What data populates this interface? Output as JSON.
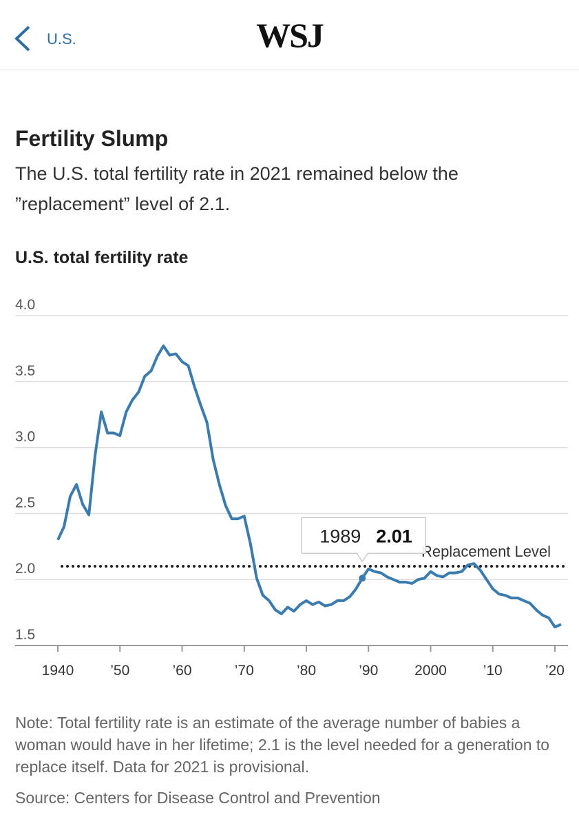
{
  "header": {
    "back_label": "U.S.",
    "logo": "WSJ"
  },
  "chart_data": {
    "type": "line",
    "title": "Fertility Slump",
    "subtitle": "The U.S. total fertility rate in 2021 remained below the ”replacement” level of 2.1.",
    "y_label": "U.S. total fertility rate",
    "color": "#3a7bb0",
    "x": [
      1940,
      1941,
      1942,
      1943,
      1944,
      1945,
      1946,
      1947,
      1948,
      1949,
      1950,
      1951,
      1952,
      1953,
      1954,
      1955,
      1956,
      1957,
      1958,
      1959,
      1960,
      1961,
      1962,
      1963,
      1964,
      1965,
      1966,
      1967,
      1968,
      1969,
      1970,
      1971,
      1972,
      1973,
      1974,
      1975,
      1976,
      1977,
      1978,
      1979,
      1980,
      1981,
      1982,
      1983,
      1984,
      1985,
      1986,
      1987,
      1988,
      1989,
      1990,
      1991,
      1992,
      1993,
      1994,
      1995,
      1996,
      1997,
      1998,
      1999,
      2000,
      2001,
      2002,
      2003,
      2004,
      2005,
      2006,
      2007,
      2008,
      2009,
      2010,
      2011,
      2012,
      2013,
      2014,
      2015,
      2016,
      2017,
      2018,
      2019,
      2020,
      2021
    ],
    "values": [
      2.3,
      2.4,
      2.63,
      2.72,
      2.57,
      2.49,
      2.94,
      3.27,
      3.11,
      3.11,
      3.09,
      3.27,
      3.36,
      3.42,
      3.54,
      3.58,
      3.69,
      3.77,
      3.7,
      3.71,
      3.65,
      3.62,
      3.46,
      3.32,
      3.19,
      2.91,
      2.72,
      2.56,
      2.46,
      2.46,
      2.48,
      2.27,
      2.01,
      1.88,
      1.84,
      1.77,
      1.74,
      1.79,
      1.76,
      1.81,
      1.84,
      1.81,
      1.83,
      1.8,
      1.81,
      1.84,
      1.84,
      1.87,
      1.93,
      2.01,
      2.08,
      2.06,
      2.05,
      2.02,
      2.0,
      1.98,
      1.98,
      1.97,
      2.0,
      2.01,
      2.06,
      2.03,
      2.02,
      2.05,
      2.05,
      2.06,
      2.11,
      2.12,
      2.07,
      2.0,
      1.93,
      1.89,
      1.88,
      1.86,
      1.86,
      1.84,
      1.82,
      1.77,
      1.73,
      1.71,
      1.64,
      1.66
    ],
    "xlim": [
      1940,
      2021
    ],
    "ylim": [
      1.5,
      4.0
    ],
    "xticks": [
      1940,
      {
        "value": 1950,
        "label": "’50"
      },
      {
        "value": 1960,
        "label": "’60"
      },
      {
        "value": 1970,
        "label": "’70"
      },
      {
        "value": 1980,
        "label": "’80"
      },
      {
        "value": 1990,
        "label": "’90"
      },
      2000,
      {
        "value": 2010,
        "label": "’10"
      },
      {
        "value": 2020,
        "label": "’20"
      }
    ],
    "yticks": [
      {
        "value": 1.5,
        "label": "1.5"
      },
      {
        "value": 2.0,
        "label": "2.0"
      },
      {
        "value": 2.5,
        "label": "2.5"
      },
      {
        "value": 3.0,
        "label": "3.0"
      },
      {
        "value": 3.5,
        "label": "3.5"
      },
      {
        "value": 4.0,
        "label": "4.0"
      }
    ],
    "grid": true,
    "reference_line": {
      "value": 2.1,
      "label": "Replacement Level"
    },
    "tooltip": {
      "x": 1989,
      "value": 2.01
    },
    "note": "Note: Total fertility rate is an estimate of the average number of babies a woman would have in her lifetime; 2.1 is the level needed for a generation to replace itself. Data for 2021 is provisional.",
    "source": "Source: Centers for Disease Control and Prevention"
  }
}
